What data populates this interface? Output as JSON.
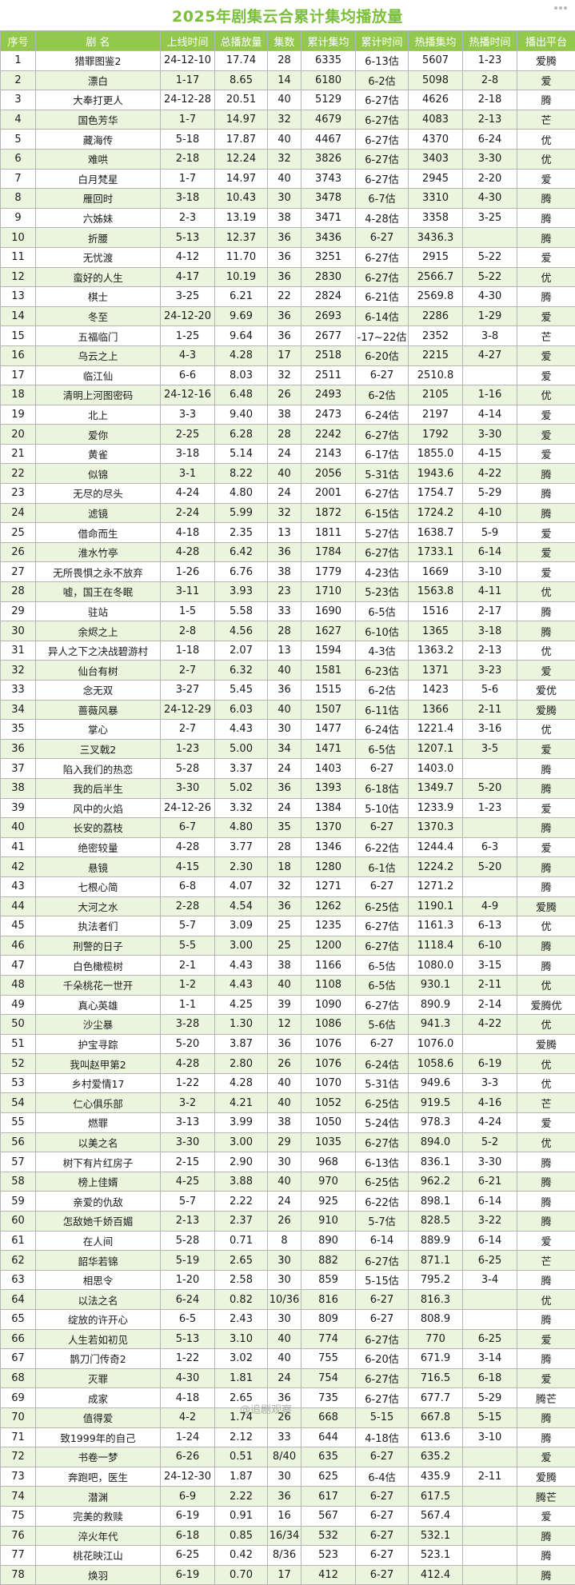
{
  "title": "2025年剧集云合累计集均播放量",
  "watermark": "@追剧观察",
  "columns": [
    "序号",
    "剧 名",
    "上线时间",
    "总播放量",
    "集数",
    "累计集均",
    "累计时间",
    "热播集均",
    "热播时间",
    "播出平台"
  ],
  "rows": [
    [
      "1",
      "猎罪图鉴2",
      "24-12-10",
      "17.74",
      "28",
      "6335",
      "6-13估",
      "5607",
      "1-23",
      "爱腾"
    ],
    [
      "2",
      "漂白",
      "1-17",
      "8.65",
      "14",
      "6180",
      "6-2估",
      "5098",
      "2-8",
      "爱"
    ],
    [
      "3",
      "大奉打更人",
      "24-12-28",
      "20.51",
      "40",
      "5129",
      "6-27估",
      "4626",
      "2-18",
      "腾"
    ],
    [
      "4",
      "国色芳华",
      "1-7",
      "14.97",
      "32",
      "4679",
      "6-27估",
      "4083",
      "2-13",
      "芒"
    ],
    [
      "5",
      "藏海传",
      "5-18",
      "17.87",
      "40",
      "4467",
      "6-27估",
      "4370",
      "6-24",
      "优"
    ],
    [
      "6",
      "难哄",
      "2-18",
      "12.24",
      "32",
      "3826",
      "6-27估",
      "3403",
      "3-30",
      "优"
    ],
    [
      "7",
      "白月梵星",
      "1-7",
      "14.97",
      "40",
      "3743",
      "6-27估",
      "2945",
      "2-20",
      "爱"
    ],
    [
      "8",
      "雁回时",
      "3-18",
      "10.43",
      "30",
      "3478",
      "6-7估",
      "3310",
      "4-30",
      "腾"
    ],
    [
      "9",
      "六姊妹",
      "2-3",
      "13.19",
      "38",
      "3471",
      "4-28估",
      "3358",
      "3-25",
      "腾"
    ],
    [
      "10",
      "折腰",
      "5-13",
      "12.37",
      "36",
      "3436",
      "6-27",
      "3436.3",
      "",
      "腾"
    ],
    [
      "11",
      "无忧渡",
      "4-12",
      "11.70",
      "36",
      "3251",
      "6-27估",
      "2915",
      "5-22",
      "爱"
    ],
    [
      "12",
      "蛮好的人生",
      "4-17",
      "10.19",
      "36",
      "2830",
      "6-27估",
      "2566.7",
      "5-22",
      "优"
    ],
    [
      "13",
      "棋士",
      "3-25",
      "6.21",
      "22",
      "2824",
      "6-21估",
      "2569.8",
      "4-30",
      "腾"
    ],
    [
      "14",
      "冬至",
      "24-12-20",
      "9.69",
      "36",
      "2693",
      "6-14估",
      "2286",
      "1-29",
      "爱"
    ],
    [
      "15",
      "五福临门",
      "1-25",
      "9.64",
      "36",
      "2677",
      "-17~22估",
      "2352",
      "3-8",
      "芒"
    ],
    [
      "16",
      "乌云之上",
      "4-3",
      "4.28",
      "17",
      "2518",
      "6-20估",
      "2215",
      "4-27",
      "爱"
    ],
    [
      "17",
      "临江仙",
      "6-6",
      "8.03",
      "32",
      "2511",
      "6-27",
      "2510.8",
      "",
      "爱"
    ],
    [
      "18",
      "清明上河图密码",
      "24-12-16",
      "6.48",
      "26",
      "2493",
      "6-2估",
      "2105",
      "1-16",
      "优"
    ],
    [
      "19",
      "北上",
      "3-3",
      "9.40",
      "38",
      "2473",
      "6-24估",
      "2197",
      "4-14",
      "爱"
    ],
    [
      "20",
      "爱你",
      "2-25",
      "6.28",
      "28",
      "2242",
      "6-27估",
      "1792",
      "3-30",
      "爱"
    ],
    [
      "21",
      "黄雀",
      "3-18",
      "5.14",
      "24",
      "2143",
      "6-17估",
      "1855.0",
      "4-15",
      "爱"
    ],
    [
      "22",
      "似锦",
      "3-1",
      "8.22",
      "40",
      "2056",
      "5-31估",
      "1943.6",
      "4-22",
      "腾"
    ],
    [
      "23",
      "无尽的尽头",
      "4-24",
      "4.80",
      "24",
      "2001",
      "6-27估",
      "1754.7",
      "5-29",
      "腾"
    ],
    [
      "24",
      "滤镜",
      "2-24",
      "5.99",
      "32",
      "1872",
      "6-15估",
      "1724.2",
      "4-10",
      "腾"
    ],
    [
      "25",
      "借命而生",
      "4-18",
      "2.35",
      "13",
      "1811",
      "5-27估",
      "1638.7",
      "5-9",
      "爱"
    ],
    [
      "26",
      "淮水竹亭",
      "4-28",
      "6.42",
      "36",
      "1784",
      "6-27估",
      "1733.1",
      "6-14",
      "爱"
    ],
    [
      "27",
      "无所畏惧之永不放弃",
      "1-26",
      "6.76",
      "38",
      "1779",
      "4-23估",
      "1669",
      "3-10",
      "爱"
    ],
    [
      "28",
      "嘘，国王在冬眠",
      "3-11",
      "3.93",
      "23",
      "1710",
      "5-23估",
      "1563.8",
      "4-11",
      "优"
    ],
    [
      "29",
      "驻站",
      "1-5",
      "5.58",
      "33",
      "1690",
      "6-5估",
      "1516",
      "2-17",
      "腾"
    ],
    [
      "30",
      "余烬之上",
      "2-8",
      "4.56",
      "28",
      "1627",
      "6-10估",
      "1365",
      "3-18",
      "腾"
    ],
    [
      "31",
      "异人之下之决战碧游村",
      "1-18",
      "2.07",
      "13",
      "1594",
      "4-3估",
      "1363.2",
      "2-13",
      "优"
    ],
    [
      "32",
      "仙台有树",
      "2-7",
      "6.32",
      "40",
      "1581",
      "6-23估",
      "1371",
      "3-23",
      "爱"
    ],
    [
      "33",
      "念无双",
      "3-27",
      "5.45",
      "36",
      "1515",
      "6-2估",
      "1423",
      "5-6",
      "爱优"
    ],
    [
      "34",
      "蔷薇风暴",
      "24-12-29",
      "6.03",
      "40",
      "1507",
      "6-11估",
      "1366",
      "2-11",
      "爱腾"
    ],
    [
      "35",
      "掌心",
      "2-7",
      "4.43",
      "30",
      "1477",
      "6-24估",
      "1221.4",
      "3-16",
      "优"
    ],
    [
      "36",
      "三叉戟2",
      "1-23",
      "5.00",
      "34",
      "1471",
      "6-5估",
      "1207.1",
      "3-5",
      "爱"
    ],
    [
      "37",
      "陷入我们的热恋",
      "5-28",
      "3.37",
      "24",
      "1403",
      "6-27",
      "1403.0",
      "",
      "腾"
    ],
    [
      "38",
      "我的后半生",
      "3-30",
      "5.02",
      "36",
      "1393",
      "6-18估",
      "1349.7",
      "5-20",
      "腾"
    ],
    [
      "39",
      "风中的火焰",
      "24-12-26",
      "3.32",
      "24",
      "1384",
      "5-10估",
      "1233.9",
      "1-23",
      "爱"
    ],
    [
      "40",
      "长安的荔枝",
      "6-7",
      "4.80",
      "35",
      "1370",
      "6-27",
      "1370.3",
      "",
      "腾"
    ],
    [
      "41",
      "绝密较量",
      "4-28",
      "3.77",
      "28",
      "1346",
      "6-22估",
      "1244.4",
      "6-3",
      "爱"
    ],
    [
      "42",
      "悬镜",
      "4-15",
      "2.30",
      "18",
      "1280",
      "6-1估",
      "1224.2",
      "5-20",
      "腾"
    ],
    [
      "43",
      "七根心简",
      "6-8",
      "4.07",
      "32",
      "1271",
      "6-27",
      "1271.2",
      "",
      "腾"
    ],
    [
      "44",
      "大河之水",
      "2-28",
      "4.54",
      "36",
      "1262",
      "6-25估",
      "1190.1",
      "4-9",
      "爱腾"
    ],
    [
      "45",
      "执法者们",
      "5-7",
      "3.09",
      "25",
      "1235",
      "6-27估",
      "1161.3",
      "6-13",
      "优"
    ],
    [
      "46",
      "刑警的日子",
      "5-5",
      "3.00",
      "25",
      "1200",
      "6-27估",
      "1118.4",
      "6-10",
      "腾"
    ],
    [
      "47",
      "白色橄榄树",
      "2-1",
      "4.43",
      "38",
      "1166",
      "6-5估",
      "1080.0",
      "3-15",
      "腾"
    ],
    [
      "48",
      "千朵桃花一世开",
      "1-2",
      "4.43",
      "40",
      "1108",
      "6-5估",
      "930.1",
      "2-11",
      "优"
    ],
    [
      "49",
      "真心英雄",
      "1-1",
      "4.25",
      "39",
      "1090",
      "6-27估",
      "890.9",
      "2-14",
      "爱腾优"
    ],
    [
      "50",
      "沙尘暴",
      "3-28",
      "1.30",
      "12",
      "1086",
      "5-6估",
      "941.3",
      "4-22",
      "优"
    ],
    [
      "51",
      "护宝寻踪",
      "5-20",
      "3.87",
      "36",
      "1076",
      "6-27",
      "1076.0",
      "",
      "爱腾"
    ],
    [
      "52",
      "我叫赵甲第2",
      "4-28",
      "2.80",
      "26",
      "1076",
      "6-24估",
      "1058.6",
      "6-19",
      "优"
    ],
    [
      "53",
      "乡村爱情17",
      "1-22",
      "4.28",
      "40",
      "1070",
      "5-31估",
      "949.6",
      "3-3",
      "优"
    ],
    [
      "54",
      "仁心俱乐部",
      "3-2",
      "4.21",
      "40",
      "1052",
      "6-25估",
      "919.5",
      "4-16",
      "芒"
    ],
    [
      "55",
      "燃罪",
      "3-13",
      "3.99",
      "38",
      "1050",
      "5-24估",
      "978.3",
      "4-24",
      "爱"
    ],
    [
      "56",
      "以美之名",
      "3-30",
      "3.00",
      "29",
      "1035",
      "6-27估",
      "894.0",
      "5-2",
      "优"
    ],
    [
      "57",
      "树下有片红房子",
      "2-15",
      "2.90",
      "30",
      "968",
      "6-13估",
      "836.1",
      "3-30",
      "腾"
    ],
    [
      "58",
      "榜上佳婿",
      "4-25",
      "3.88",
      "40",
      "970",
      "6-25估",
      "962.2",
      "6-21",
      "腾"
    ],
    [
      "59",
      "亲爱的仇敌",
      "5-7",
      "2.22",
      "24",
      "925",
      "6-22估",
      "898.1",
      "6-14",
      "腾"
    ],
    [
      "60",
      "怎敌她千娇百媚",
      "2-13",
      "2.37",
      "26",
      "910",
      "5-7估",
      "828.5",
      "3-22",
      "腾"
    ],
    [
      "61",
      "在人间",
      "5-28",
      "0.71",
      "8",
      "890",
      "6-14",
      "889.9",
      "6-14",
      "爱"
    ],
    [
      "62",
      "韶华若锦",
      "5-19",
      "2.65",
      "30",
      "882",
      "6-27估",
      "871.1",
      "6-25",
      "芒"
    ],
    [
      "63",
      "相思令",
      "1-20",
      "2.58",
      "30",
      "859",
      "5-15估",
      "795.2",
      "3-4",
      "腾"
    ],
    [
      "64",
      "以法之名",
      "6-24",
      "0.82",
      "10/36",
      "816",
      "6-27",
      "816.3",
      "",
      "优"
    ],
    [
      "65",
      "绽放的许开心",
      "6-5",
      "2.43",
      "30",
      "809",
      "6-27",
      "808.9",
      "",
      "腾"
    ],
    [
      "66",
      "人生若如初见",
      "5-13",
      "3.10",
      "40",
      "774",
      "6-27估",
      "770",
      "6-25",
      "爱"
    ],
    [
      "67",
      "鹊刀门传奇2",
      "1-22",
      "3.02",
      "40",
      "755",
      "6-20估",
      "671.9",
      "3-14",
      "腾"
    ],
    [
      "68",
      "灭罪",
      "4-30",
      "1.81",
      "24",
      "754",
      "6-27估",
      "716.5",
      "6-18",
      "爱"
    ],
    [
      "69",
      "成家",
      "4-18",
      "2.65",
      "36",
      "735",
      "6-27估",
      "677.7",
      "5-29",
      "腾芒"
    ],
    [
      "70",
      "值得爱",
      "4-2",
      "1.74",
      "26",
      "668",
      "5-15",
      "667.8",
      "5-15",
      "腾"
    ],
    [
      "71",
      "致1999年的自己",
      "1-24",
      "2.12",
      "33",
      "644",
      "4-18估",
      "613.6",
      "3-10",
      "腾"
    ],
    [
      "72",
      "书卷一梦",
      "6-26",
      "0.51",
      "8/40",
      "635",
      "6-27",
      "635.2",
      "",
      "爱"
    ],
    [
      "73",
      "奔跑吧，医生",
      "24-12-30",
      "1.87",
      "30",
      "625",
      "6-4估",
      "435.9",
      "2-11",
      "爱腾"
    ],
    [
      "74",
      "潜渊",
      "6-9",
      "2.22",
      "36",
      "617",
      "6-27",
      "617.5",
      "",
      "腾芒"
    ],
    [
      "75",
      "完美的救赎",
      "6-19",
      "0.91",
      "16",
      "567",
      "6-27",
      "567.4",
      "",
      "爱"
    ],
    [
      "76",
      "淬火年代",
      "6-18",
      "0.85",
      "16/34",
      "532",
      "6-27",
      "532.1",
      "",
      "腾"
    ],
    [
      "77",
      "桃花映江山",
      "6-25",
      "0.42",
      "8/36",
      "523",
      "6-27",
      "523.1",
      "",
      "腾"
    ],
    [
      "78",
      "焕羽",
      "6-19",
      "0.70",
      "17",
      "412",
      "6-27",
      "412.4",
      "",
      "腾"
    ]
  ]
}
